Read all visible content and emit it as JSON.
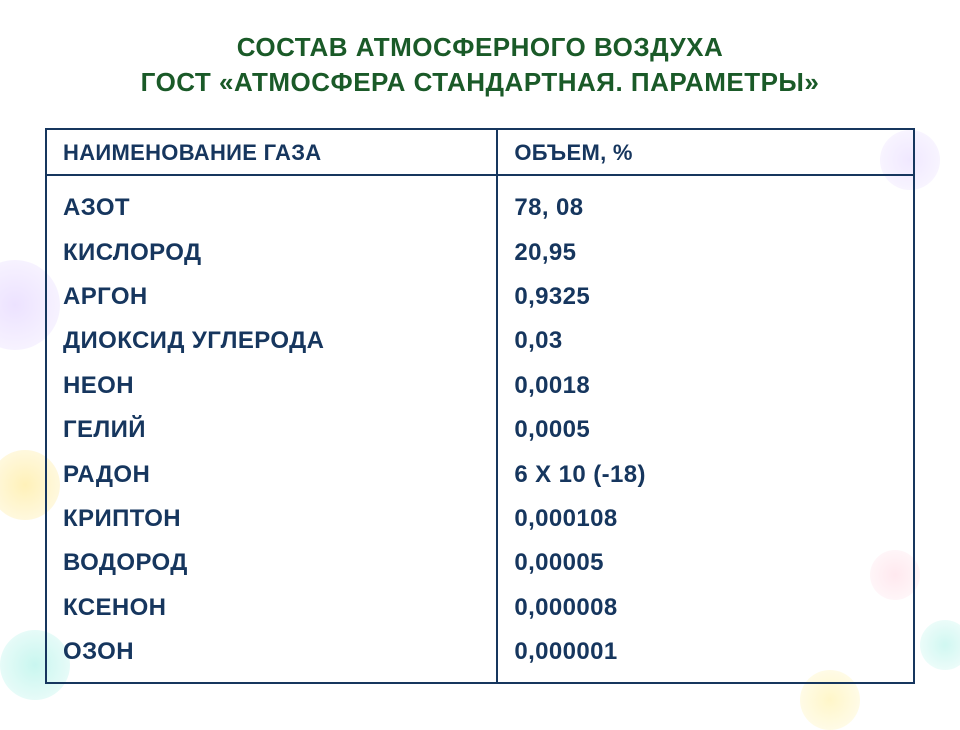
{
  "title_line1": "СОСТАВ АТМОСФЕРНОГО ВОЗДУХА",
  "title_line2": "ГОСТ «АТМОСФЕРА СТАНДАРТНАЯ. ПАРАМЕТРЫ»",
  "table": {
    "header_name": "НАИМЕНОВАНИЕ ГАЗА",
    "header_value": "ОБЪЕМ, %",
    "rows": [
      {
        "name": "АЗОТ",
        "value": "78, 08"
      },
      {
        "name": "КИСЛОРОД",
        "value": "20,95"
      },
      {
        "name": "АРГОН",
        "value": "0,9325"
      },
      {
        "name": "ДИОКСИД УГЛЕРОДА",
        "value": "0,03"
      },
      {
        "name": "НЕОН",
        "value": "0,0018"
      },
      {
        "name": "ГЕЛИЙ",
        "value": "0,0005"
      },
      {
        "name": "РАДОН",
        "value": "6 Х 10  (-18)"
      },
      {
        "name": "КРИПТОН",
        "value": "0,000108"
      },
      {
        "name": "ВОДОРОД",
        "value": "0,00005"
      },
      {
        "name": "КСЕНОН",
        "value": "0,000008"
      },
      {
        "name": "ОЗОН",
        "value": "0,000001"
      }
    ]
  },
  "styles": {
    "title_color": "#1a5a28",
    "table_border_color": "#16365e",
    "text_color": "#16365e",
    "background_color": "#ffffff",
    "title_fontsize": 26,
    "header_fontsize": 22,
    "cell_fontsize": 24
  }
}
